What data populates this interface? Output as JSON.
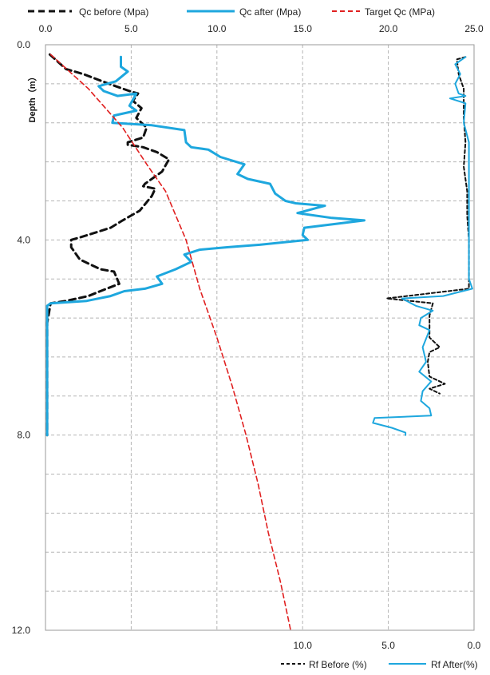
{
  "chart_data": {
    "type": "line",
    "y_axis": {
      "label": "Depth（m）",
      "range": [
        0,
        12
      ],
      "ticks": [
        "0.0",
        "4.0",
        "8.0",
        "12.0"
      ],
      "inverted": true,
      "minor_grid_step": 0.8
    },
    "top_axis": {
      "range": [
        0,
        25
      ],
      "ticks": [
        "0.0",
        "5.0",
        "10.0",
        "15.0",
        "20.0",
        "25.0"
      ]
    },
    "bottom_axis": {
      "range": [
        25,
        0
      ],
      "reversed": true,
      "ticks": [
        "10.0",
        "5.0",
        "0.0"
      ]
    },
    "grid": true,
    "legend_top": [
      "Qc before (Mpa)",
      "Qc after (Mpa)",
      "Target Qc (MPa)"
    ],
    "legend_bottom": [
      "Rf Before (%)",
      "Rf After(%)"
    ],
    "series": [
      {
        "name": "Qc before (Mpa)",
        "axis": "top",
        "color": "#111111",
        "dash": "dashed",
        "points": [
          [
            0.25,
            0.2
          ],
          [
            1.2,
            0.5
          ],
          [
            2.2,
            0.6
          ],
          [
            3.7,
            0.8
          ],
          [
            4.9,
            0.95
          ],
          [
            5.4,
            1.0
          ],
          [
            5.1,
            1.15
          ],
          [
            5.6,
            1.3
          ],
          [
            5.3,
            1.5
          ],
          [
            5.9,
            1.7
          ],
          [
            5.7,
            1.9
          ],
          [
            4.8,
            2.0
          ],
          [
            4.8,
            2.05
          ],
          [
            5.7,
            2.1
          ],
          [
            6.5,
            2.2
          ],
          [
            7.2,
            2.35
          ],
          [
            6.8,
            2.6
          ],
          [
            5.8,
            2.85
          ],
          [
            5.7,
            2.9
          ],
          [
            6.4,
            2.95
          ],
          [
            6.2,
            3.1
          ],
          [
            5.5,
            3.4
          ],
          [
            4.5,
            3.6
          ],
          [
            3.8,
            3.75
          ],
          [
            2.0,
            3.95
          ],
          [
            1.5,
            4.0
          ],
          [
            1.5,
            4.15
          ],
          [
            2.0,
            4.4
          ],
          [
            3.2,
            4.6
          ],
          [
            4.0,
            4.65
          ],
          [
            4.3,
            4.9
          ],
          [
            3.2,
            5.05
          ],
          [
            2.5,
            5.15
          ],
          [
            1.2,
            5.25
          ],
          [
            0.3,
            5.3
          ],
          [
            0.2,
            5.5
          ],
          [
            0.1,
            5.7
          ],
          [
            0.1,
            8.0
          ]
        ]
      },
      {
        "name": "Qc after (Mpa)",
        "axis": "top",
        "color": "#1ea7de",
        "dash": "solid",
        "points": [
          [
            4.4,
            0.25
          ],
          [
            4.4,
            0.45
          ],
          [
            4.8,
            0.55
          ],
          [
            4.1,
            0.75
          ],
          [
            3.1,
            0.85
          ],
          [
            3.4,
            0.95
          ],
          [
            4.2,
            1.05
          ],
          [
            5.3,
            1.0
          ],
          [
            4.9,
            1.25
          ],
          [
            5.3,
            1.35
          ],
          [
            4.0,
            1.45
          ],
          [
            3.9,
            1.6
          ],
          [
            6.2,
            1.65
          ],
          [
            8.1,
            1.75
          ],
          [
            8.2,
            2.0
          ],
          [
            8.5,
            2.1
          ],
          [
            9.5,
            2.15
          ],
          [
            10.2,
            2.3
          ],
          [
            11.6,
            2.45
          ],
          [
            11.2,
            2.65
          ],
          [
            11.8,
            2.75
          ],
          [
            13.1,
            2.85
          ],
          [
            13.4,
            3.05
          ],
          [
            14.0,
            3.2
          ],
          [
            14.6,
            3.25
          ],
          [
            16.3,
            3.3
          ],
          [
            14.7,
            3.45
          ],
          [
            16.7,
            3.55
          ],
          [
            18.6,
            3.6
          ],
          [
            15.1,
            3.75
          ],
          [
            15.0,
            3.9
          ],
          [
            15.3,
            4.0
          ],
          [
            12.5,
            4.1
          ],
          [
            10.6,
            4.15
          ],
          [
            9.0,
            4.2
          ],
          [
            8.1,
            4.3
          ],
          [
            8.5,
            4.45
          ],
          [
            7.6,
            4.6
          ],
          [
            6.5,
            4.75
          ],
          [
            6.8,
            4.9
          ],
          [
            5.8,
            5.0
          ],
          [
            4.6,
            5.05
          ],
          [
            3.8,
            5.15
          ],
          [
            2.4,
            5.25
          ],
          [
            0.3,
            5.3
          ],
          [
            0.1,
            5.35
          ],
          [
            0.1,
            8.0
          ]
        ]
      },
      {
        "name": "Target Qc (MPa)",
        "axis": "top",
        "color": "#e02020",
        "dash": "dashed",
        "points": [
          [
            0.3,
            0.2
          ],
          [
            2.5,
            0.9
          ],
          [
            4.5,
            1.7
          ],
          [
            6.0,
            2.5
          ],
          [
            7.0,
            3.0
          ],
          [
            8.2,
            4.0
          ],
          [
            9.0,
            5.0
          ],
          [
            10.0,
            6.0
          ],
          [
            10.9,
            7.0
          ],
          [
            11.7,
            8.0
          ],
          [
            12.4,
            9.0
          ],
          [
            13.0,
            10.0
          ],
          [
            13.7,
            11.0
          ],
          [
            14.3,
            12.0
          ]
        ]
      },
      {
        "name": "Rf Before (%)",
        "axis": "bottom",
        "color": "#111111",
        "dash": "dashed",
        "points": [
          [
            0.5,
            0.25
          ],
          [
            1.0,
            0.3
          ],
          [
            0.9,
            0.6
          ],
          [
            0.6,
            0.9
          ],
          [
            0.6,
            1.5
          ],
          [
            0.5,
            2.0
          ],
          [
            0.6,
            2.5
          ],
          [
            0.4,
            3.0
          ],
          [
            0.4,
            3.5
          ],
          [
            0.3,
            4.0
          ],
          [
            0.3,
            4.5
          ],
          [
            0.3,
            5.0
          ],
          [
            2.7,
            5.1
          ],
          [
            5.1,
            5.2
          ],
          [
            2.4,
            5.3
          ],
          [
            2.6,
            5.55
          ],
          [
            2.6,
            6.0
          ],
          [
            2.0,
            6.2
          ],
          [
            2.6,
            6.3
          ],
          [
            2.7,
            6.5
          ],
          [
            2.6,
            6.8
          ],
          [
            1.7,
            6.95
          ],
          [
            2.6,
            7.05
          ],
          [
            2.0,
            7.15
          ]
        ]
      },
      {
        "name": "Rf After(%)",
        "axis": "bottom",
        "color": "#1ea7de",
        "dash": "solid",
        "points": [
          [
            0.5,
            0.25
          ],
          [
            1.1,
            0.4
          ],
          [
            0.8,
            0.6
          ],
          [
            1.1,
            0.8
          ],
          [
            0.9,
            1.0
          ],
          [
            0.5,
            1.05
          ],
          [
            1.4,
            1.1
          ],
          [
            0.5,
            1.2
          ],
          [
            0.6,
            1.6
          ],
          [
            0.3,
            2.0
          ],
          [
            0.3,
            3.0
          ],
          [
            0.3,
            4.0
          ],
          [
            0.3,
            4.8
          ],
          [
            0.1,
            5.0
          ],
          [
            1.8,
            5.15
          ],
          [
            4.2,
            5.2
          ],
          [
            3.4,
            5.35
          ],
          [
            2.4,
            5.45
          ],
          [
            3.1,
            5.6
          ],
          [
            3.2,
            5.75
          ],
          [
            2.6,
            5.85
          ],
          [
            3.0,
            6.2
          ],
          [
            2.8,
            6.5
          ],
          [
            3.2,
            6.7
          ],
          [
            2.5,
            6.9
          ],
          [
            3.0,
            7.1
          ],
          [
            3.1,
            7.3
          ],
          [
            2.6,
            7.45
          ],
          [
            2.5,
            7.6
          ],
          [
            5.8,
            7.65
          ],
          [
            5.9,
            7.75
          ],
          [
            4.8,
            7.85
          ],
          [
            4.0,
            7.95
          ],
          [
            4.0,
            8.0
          ]
        ]
      }
    ]
  }
}
